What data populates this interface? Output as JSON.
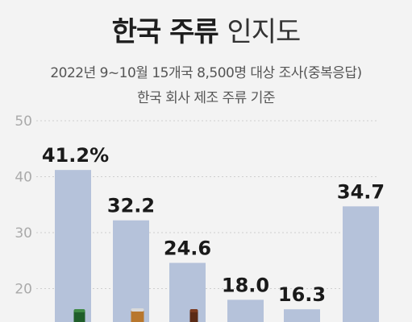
{
  "header": {
    "title_strong": "한국 주류",
    "title_light": "인지도",
    "subtitle1": "2022년 9~10월 15개국 8,500명 대상 조사(중복응답)",
    "subtitle2": "한국 회사 제조 주류 기준"
  },
  "colors": {
    "bar": "#b5c2da",
    "gridline": "#cfcfcf",
    "background": "#f3f3f3"
  },
  "chart_data": {
    "type": "bar",
    "categories": [
      "",
      "",
      "",
      "",
      "",
      ""
    ],
    "values": [
      41.2,
      32.2,
      24.6,
      18.0,
      16.3,
      34.7
    ],
    "value_labels": [
      "41.2%",
      "32.2",
      "24.6",
      "18.0",
      "16.3",
      "34.7"
    ],
    "yticks": [
      "50",
      "40",
      "30",
      "20"
    ],
    "ylim": [
      0,
      50
    ],
    "grid": true,
    "legend": "none",
    "bottle_icons": [
      "green-bottle-icon",
      "amber-can-icon",
      "brown-bottle-icon",
      "",
      "",
      ""
    ]
  }
}
